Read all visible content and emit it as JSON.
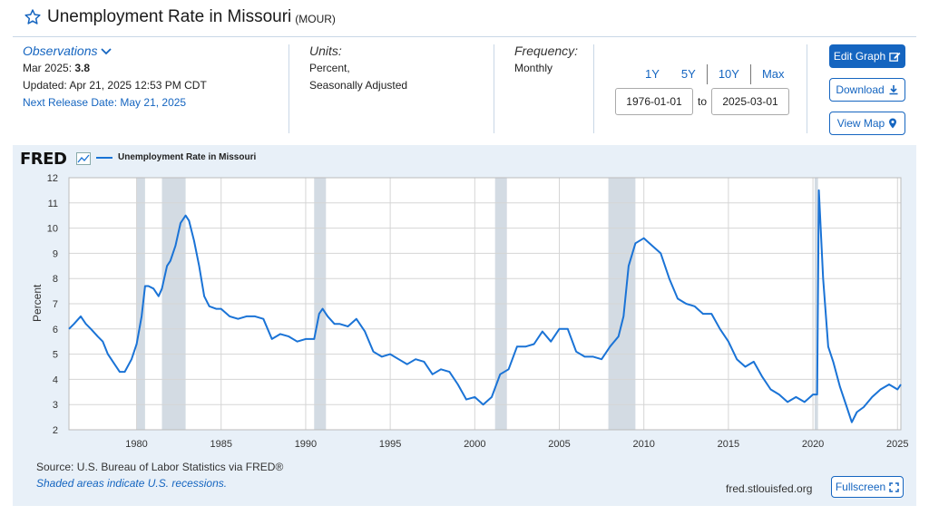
{
  "header": {
    "title": "Unemployment Rate in Missouri",
    "code": "(MOUR)"
  },
  "observations": {
    "label": "Observations",
    "date": "Mar 2025:",
    "value": "3.8",
    "updated": "Updated: Apr 21, 2025 12:53 PM CDT",
    "next_release": "Next Release Date: May 21, 2025"
  },
  "units": {
    "label": "Units:",
    "line1": "Percent,",
    "line2": "Seasonally Adjusted"
  },
  "frequency": {
    "label": "Frequency:",
    "value": "Monthly"
  },
  "range_buttons": [
    "1Y",
    "5Y",
    "10Y",
    "Max"
  ],
  "date_range": {
    "start": "1976-01-01",
    "to": "to",
    "end": "2025-03-01"
  },
  "buttons": {
    "edit": "Edit Graph",
    "download": "Download",
    "map": "View Map",
    "fullscreen": "Fullscreen"
  },
  "footer": {
    "source": "Source: U.S. Bureau of Labor Statistics via FRED®",
    "shading": "Shaded areas indicate U.S. recessions.",
    "site": "fred.stlouisfed.org"
  },
  "logo": "FRED",
  "colors": {
    "line": "#1a73d6",
    "accent": "#1565c0",
    "recession": "#d3dbe3"
  },
  "chart_data": {
    "type": "line",
    "title": "",
    "legend": [
      "Unemployment Rate in Missouri"
    ],
    "ylabel": "Percent",
    "xlabel": "",
    "xlim": [
      1976.0,
      2025.2
    ],
    "ylim": [
      2,
      12
    ],
    "yticks": [
      2,
      3,
      4,
      5,
      6,
      7,
      8,
      9,
      10,
      11,
      12
    ],
    "xticks": [
      1980,
      1985,
      1990,
      1995,
      2000,
      2005,
      2010,
      2015,
      2020,
      2025
    ],
    "recessions": [
      [
        1980.0,
        1980.5
      ],
      [
        1981.5,
        1982.9
      ],
      [
        1990.5,
        1991.2
      ],
      [
        2001.2,
        2001.9
      ],
      [
        2007.9,
        2009.5
      ],
      [
        2020.1,
        2020.3
      ]
    ],
    "series": [
      {
        "name": "Unemployment Rate in Missouri",
        "x": [
          1976.0,
          1976.3,
          1976.7,
          1977.0,
          1977.3,
          1977.7,
          1978.0,
          1978.3,
          1978.7,
          1979.0,
          1979.3,
          1979.7,
          1980.0,
          1980.3,
          1980.5,
          1980.7,
          1981.0,
          1981.3,
          1981.5,
          1981.8,
          1982.0,
          1982.3,
          1982.6,
          1982.9,
          1983.1,
          1983.4,
          1983.7,
          1984.0,
          1984.3,
          1984.7,
          1985.0,
          1985.5,
          1986.0,
          1986.5,
          1987.0,
          1987.5,
          1988.0,
          1988.5,
          1989.0,
          1989.5,
          1990.0,
          1990.5,
          1990.8,
          1991.0,
          1991.3,
          1991.7,
          1992.0,
          1992.5,
          1993.0,
          1993.5,
          1994.0,
          1994.5,
          1995.0,
          1995.5,
          1996.0,
          1996.5,
          1997.0,
          1997.5,
          1998.0,
          1998.5,
          1999.0,
          1999.5,
          2000.0,
          2000.5,
          2001.0,
          2001.5,
          2002.0,
          2002.5,
          2003.0,
          2003.5,
          2004.0,
          2004.5,
          2005.0,
          2005.5,
          2006.0,
          2006.5,
          2007.0,
          2007.5,
          2008.0,
          2008.5,
          2008.8,
          2009.1,
          2009.5,
          2010.0,
          2010.5,
          2011.0,
          2011.5,
          2012.0,
          2012.5,
          2013.0,
          2013.5,
          2014.0,
          2014.5,
          2015.0,
          2015.5,
          2016.0,
          2016.5,
          2017.0,
          2017.5,
          2018.0,
          2018.5,
          2019.0,
          2019.5,
          2020.0,
          2020.25,
          2020.35,
          2020.6,
          2020.9,
          2021.2,
          2021.6,
          2022.0,
          2022.3,
          2022.6,
          2023.0,
          2023.5,
          2024.0,
          2024.5,
          2025.0,
          2025.2
        ],
        "values": [
          6.0,
          6.2,
          6.5,
          6.2,
          6.0,
          5.7,
          5.5,
          5.0,
          4.6,
          4.3,
          4.3,
          4.8,
          5.4,
          6.5,
          7.7,
          7.7,
          7.6,
          7.3,
          7.6,
          8.5,
          8.7,
          9.3,
          10.2,
          10.5,
          10.3,
          9.5,
          8.5,
          7.3,
          6.9,
          6.8,
          6.8,
          6.5,
          6.4,
          6.5,
          6.5,
          6.4,
          5.6,
          5.8,
          5.7,
          5.5,
          5.6,
          5.6,
          6.6,
          6.8,
          6.5,
          6.2,
          6.2,
          6.1,
          6.4,
          5.9,
          5.1,
          4.9,
          5.0,
          4.8,
          4.6,
          4.8,
          4.7,
          4.2,
          4.4,
          4.3,
          3.8,
          3.2,
          3.3,
          3.0,
          3.3,
          4.2,
          4.4,
          5.3,
          5.3,
          5.4,
          5.9,
          5.5,
          6.0,
          6.0,
          5.1,
          4.9,
          4.9,
          4.8,
          5.3,
          5.7,
          6.5,
          8.5,
          9.4,
          9.6,
          9.3,
          9.0,
          8.0,
          7.2,
          7.0,
          6.9,
          6.6,
          6.6,
          6.0,
          5.5,
          4.8,
          4.5,
          4.7,
          4.1,
          3.6,
          3.4,
          3.1,
          3.3,
          3.1,
          3.4,
          3.4,
          11.5,
          8.0,
          5.3,
          4.7,
          3.7,
          2.9,
          2.3,
          2.7,
          2.9,
          3.3,
          3.6,
          3.8,
          3.6,
          3.8
        ]
      }
    ]
  }
}
